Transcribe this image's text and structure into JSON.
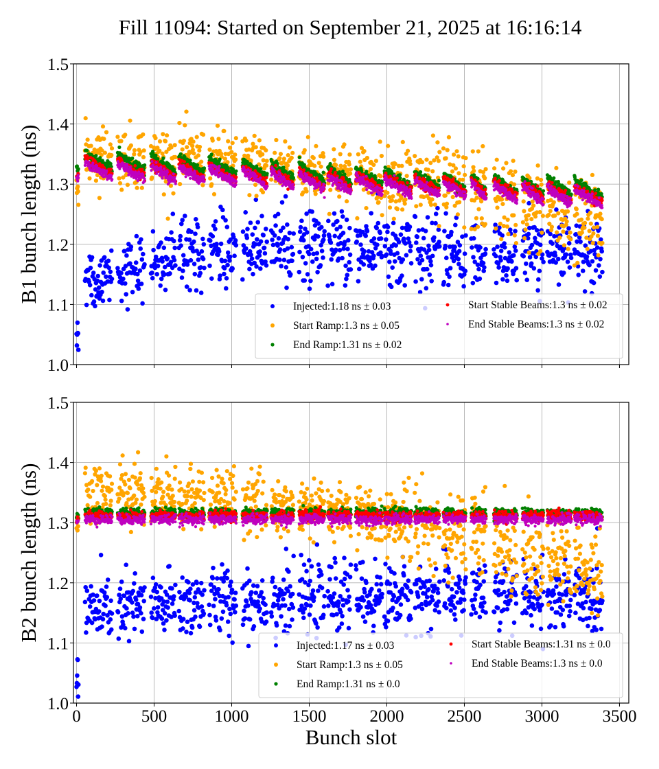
{
  "figure": {
    "title": "Fill 11094: Started on September 21, 2025 at 16:16:14"
  },
  "chart_data": [
    {
      "type": "scatter",
      "id": "b1",
      "title": "",
      "xlabel": "",
      "ylabel": "B1 bunch length (ns)",
      "xlim": [
        -20,
        3560
      ],
      "ylim": [
        1.0,
        1.5
      ],
      "xticks": [
        0,
        500,
        1000,
        1500,
        2000,
        2500,
        3000,
        3500
      ],
      "xtick_labels": [],
      "yticks": [
        1.0,
        1.1,
        1.2,
        1.3,
        1.4,
        1.5
      ],
      "ytick_labels": [
        "1.0",
        "1.1",
        "1.2",
        "1.3",
        "1.4",
        "1.5"
      ],
      "grid": true,
      "legend_placement": "lower-right",
      "trains": [
        [
          0,
          12
        ],
        [
          55,
          230
        ],
        [
          265,
          440
        ],
        [
          480,
          640
        ],
        [
          660,
          825
        ],
        [
          855,
          1030
        ],
        [
          1070,
          1230
        ],
        [
          1255,
          1400
        ],
        [
          1435,
          1600
        ],
        [
          1620,
          1770
        ],
        [
          1800,
          1970
        ],
        [
          1985,
          2160
        ],
        [
          2180,
          2340
        ],
        [
          2365,
          2510
        ],
        [
          2545,
          2640
        ],
        [
          2690,
          2840
        ],
        [
          2875,
          3010
        ],
        [
          3035,
          3190
        ],
        [
          3210,
          3390
        ]
      ],
      "series": [
        {
          "name": "Injected",
          "label": "Injected:1.18 ns ± 0.03",
          "color": "#0000ff",
          "mean": 1.18,
          "std": 0.03,
          "trend": [
            1.14,
            1.19,
            1.2,
            1.18,
            1.19
          ],
          "first_train": [
            1.015,
            1.07
          ]
        },
        {
          "name": "Start Ramp",
          "label": "Start Ramp:1.3 ns ± 0.05",
          "color": "#ffa500",
          "mean": 1.3,
          "std": 0.05,
          "trend": [
            1.35,
            1.34,
            1.32,
            1.29,
            1.23
          ],
          "first_train": [
            1.25,
            1.31
          ]
        },
        {
          "name": "End Ramp",
          "label": "End Ramp:1.31 ns ± 0.02",
          "color": "#008000",
          "mean": 1.31,
          "std": 0.02,
          "trend": [
            1.34,
            1.33,
            1.315,
            1.3,
            1.29
          ],
          "first_train": [
            1.32,
            1.33
          ]
        },
        {
          "name": "Start Stable Beams",
          "label": "Start Stable Beams:1.3 ns ± 0.02",
          "color": "#ff0000",
          "mean": 1.3,
          "std": 0.02,
          "trend": [
            1.33,
            1.32,
            1.305,
            1.295,
            1.28
          ],
          "first_train": [
            1.31,
            1.32
          ]
        },
        {
          "name": "End Stable Beams",
          "label": "End Stable Beams:1.3 ns ± 0.02",
          "color": "#bf00bf",
          "mean": 1.3,
          "std": 0.02,
          "trend": [
            1.325,
            1.315,
            1.3,
            1.29,
            1.275
          ],
          "first_train": [
            1.305,
            1.315
          ]
        }
      ]
    },
    {
      "type": "scatter",
      "id": "b2",
      "title": "",
      "xlabel": "Bunch slot",
      "ylabel": "B2 bunch length (ns)",
      "xlim": [
        -20,
        3560
      ],
      "ylim": [
        1.0,
        1.5
      ],
      "xticks": [
        0,
        500,
        1000,
        1500,
        2000,
        2500,
        3000,
        3500
      ],
      "xtick_labels": [
        "0",
        "500",
        "1000",
        "1500",
        "2000",
        "2500",
        "3000",
        "3500"
      ],
      "yticks": [
        1.0,
        1.1,
        1.2,
        1.3,
        1.4,
        1.5
      ],
      "ytick_labels": [
        "1.0",
        "1.1",
        "1.2",
        "1.3",
        "1.4",
        "1.5"
      ],
      "grid": true,
      "legend_placement": "lower-right",
      "trains": [
        [
          0,
          12
        ],
        [
          55,
          230
        ],
        [
          265,
          440
        ],
        [
          480,
          640
        ],
        [
          660,
          825
        ],
        [
          855,
          1030
        ],
        [
          1070,
          1230
        ],
        [
          1255,
          1400
        ],
        [
          1435,
          1600
        ],
        [
          1620,
          1770
        ],
        [
          1800,
          1970
        ],
        [
          1985,
          2160
        ],
        [
          2180,
          2340
        ],
        [
          2365,
          2510
        ],
        [
          2545,
          2640
        ],
        [
          2690,
          2840
        ],
        [
          2875,
          3010
        ],
        [
          3035,
          3190
        ],
        [
          3210,
          3390
        ]
      ],
      "series": [
        {
          "name": "Injected",
          "label": "Injected:1.17 ns ± 0.03",
          "color": "#0000ff",
          "mean": 1.17,
          "std": 0.03,
          "trend": [
            1.15,
            1.17,
            1.175,
            1.18,
            1.17
          ],
          "first_train": [
            1.01,
            1.08
          ]
        },
        {
          "name": "Start Ramp",
          "label": "Start Ramp:1.3 ns ± 0.05",
          "color": "#ffa500",
          "mean": 1.3,
          "std": 0.05,
          "trend": [
            1.355,
            1.34,
            1.32,
            1.28,
            1.21
          ],
          "first_train": [
            1.26,
            1.33
          ]
        },
        {
          "name": "End Ramp",
          "label": "End Ramp:1.31 ns ± 0.0",
          "color": "#008000",
          "mean": 1.31,
          "std": 0.0,
          "trend": [
            1.316,
            1.316,
            1.316,
            1.316,
            1.316
          ],
          "first_train": [
            1.305,
            1.315
          ]
        },
        {
          "name": "Start Stable Beams",
          "label": "Start Stable Beams:1.31 ns ± 0.0",
          "color": "#ff0000",
          "mean": 1.31,
          "std": 0.0,
          "trend": [
            1.311,
            1.311,
            1.311,
            1.311,
            1.311
          ],
          "first_train": [
            1.3,
            1.31
          ]
        },
        {
          "name": "End Stable Beams",
          "label": "End Stable Beams:1.3 ns ± 0.0",
          "color": "#bf00bf",
          "mean": 1.3,
          "std": 0.0,
          "trend": [
            1.305,
            1.305,
            1.305,
            1.305,
            1.305
          ],
          "first_train": [
            1.295,
            1.305
          ]
        }
      ]
    }
  ]
}
